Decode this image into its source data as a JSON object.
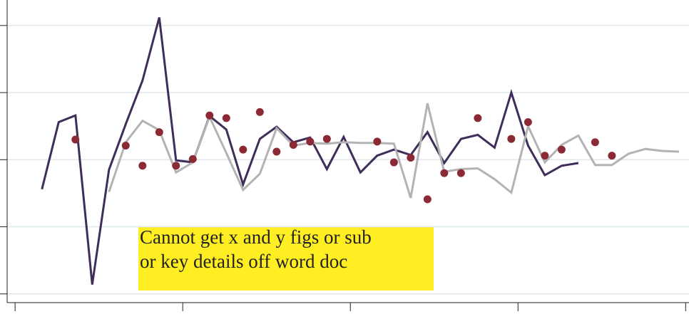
{
  "chart_data": {
    "type": "line",
    "x": [
      0.16,
      0.26,
      0.36,
      0.46,
      0.56,
      0.66,
      0.76,
      0.86,
      0.96,
      1.06,
      1.16,
      1.26,
      1.36,
      1.46,
      1.56,
      1.66,
      1.76,
      1.86,
      1.96,
      2.06,
      2.16,
      2.26,
      2.36,
      2.46,
      2.56,
      2.66,
      2.76,
      2.86,
      2.96,
      3.06,
      3.16,
      3.26,
      3.36,
      3.46,
      3.56,
      3.66,
      3.76,
      3.86,
      3.96
    ],
    "series": [
      {
        "color": "#3f2d5a",
        "values": [
          1.56,
          2.56,
          2.66,
          0.14,
          1.85,
          2.53,
          3.18,
          4.12,
          1.99,
          1.96,
          2.65,
          2.45,
          1.63,
          2.31,
          2.49,
          2.26,
          2.33,
          1.86,
          2.34,
          1.81,
          2.06,
          2.15,
          2.07,
          2.41,
          1.95,
          2.31,
          2.37,
          2.18,
          3.0,
          2.21,
          1.77,
          1.91,
          1.95,
          null,
          null,
          null,
          null,
          null,
          null
        ]
      },
      {
        "color": "#b3b3b3",
        "values": [
          null,
          null,
          null,
          null,
          1.52,
          2.26,
          2.58,
          2.44,
          1.81,
          1.96,
          2.64,
          2.1,
          1.55,
          1.79,
          2.47,
          2.21,
          2.25,
          2.24,
          2.26,
          2.25,
          2.25,
          2.24,
          1.43,
          2.84,
          1.82,
          1.86,
          1.87,
          1.71,
          1.51,
          2.5,
          1.96,
          2.22,
          2.36,
          1.92,
          1.92,
          2.09,
          2.16,
          2.13,
          2.12
        ]
      },
      {
        "color": "#8b2a35",
        "kind": "scatter",
        "values": [
          null,
          null,
          2.3,
          null,
          null,
          2.21,
          1.91,
          2.41,
          1.91,
          2.01,
          2.66,
          2.62,
          2.15,
          2.71,
          2.12,
          2.22,
          2.27,
          2.31,
          null,
          null,
          2.27,
          1.96,
          2.03,
          1.41,
          1.8,
          1.8,
          2.62,
          null,
          2.31,
          2.56,
          2.06,
          2.15,
          null,
          2.26,
          2.06,
          null,
          null,
          null,
          null
        ]
      }
    ],
    "xlim": [
      -0.09,
      4.02
    ],
    "xticks": [
      0,
      1,
      2,
      3,
      4
    ],
    "ylim": [
      -0.13,
      4.38
    ],
    "yticks": [
      0,
      1,
      2,
      3,
      4
    ],
    "grid": true,
    "annotation": [
      "Cannot get x and y figs or sub",
      "or key details off word doc"
    ]
  }
}
